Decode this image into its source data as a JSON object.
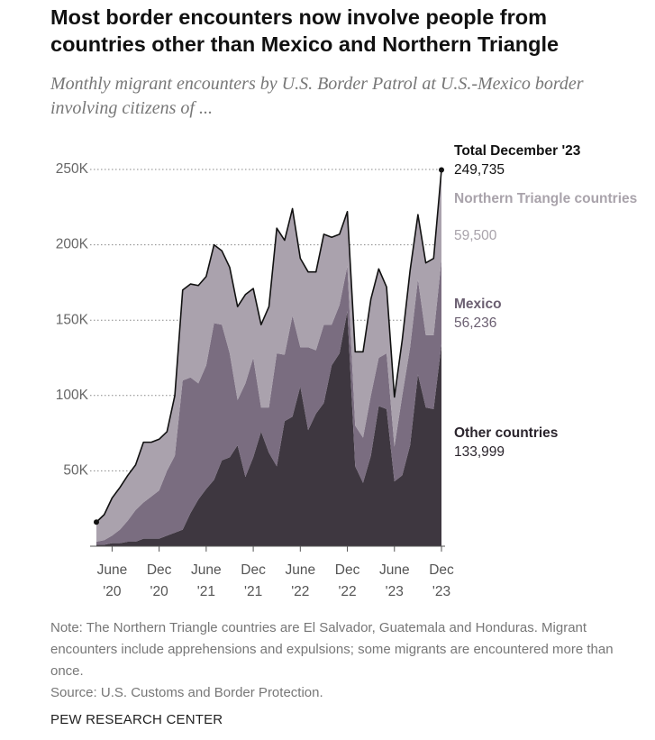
{
  "chart_data": {
    "type": "stacked-area",
    "title": "Most border encounters now involve people from countries other than Mexico and Northern Triangle",
    "subtitle": "Monthly migrant encounters by U.S. Border Patrol at U.S.-Mexico border involving citizens of ...",
    "x": [
      "2020-04",
      "2020-05",
      "2020-06",
      "2020-07",
      "2020-08",
      "2020-09",
      "2020-10",
      "2020-11",
      "2020-12",
      "2021-01",
      "2021-02",
      "2021-03",
      "2021-04",
      "2021-05",
      "2021-06",
      "2021-07",
      "2021-08",
      "2021-09",
      "2021-10",
      "2021-11",
      "2021-12",
      "2022-01",
      "2022-02",
      "2022-03",
      "2022-04",
      "2022-05",
      "2022-06",
      "2022-07",
      "2022-08",
      "2022-09",
      "2022-10",
      "2022-11",
      "2022-12",
      "2023-01",
      "2023-02",
      "2023-03",
      "2023-04",
      "2023-05",
      "2023-06",
      "2023-07",
      "2023-08",
      "2023-09",
      "2023-10",
      "2023-11",
      "2023-12"
    ],
    "xticks": [
      {
        "value": "2020-06",
        "label": "June '20"
      },
      {
        "value": "2020-12",
        "label": "Dec '20"
      },
      {
        "value": "2021-06",
        "label": "June '21"
      },
      {
        "value": "2021-12",
        "label": "Dec '21"
      },
      {
        "value": "2022-06",
        "label": "June '22"
      },
      {
        "value": "2022-12",
        "label": "Dec '22"
      },
      {
        "value": "2023-06",
        "label": "June '23"
      },
      {
        "value": "2023-12",
        "label": "Dec '23"
      }
    ],
    "ylim": [
      0,
      250000
    ],
    "yticks": [
      {
        "value": 50000,
        "label": "50K"
      },
      {
        "value": 100000,
        "label": "100K"
      },
      {
        "value": 150000,
        "label": "150K"
      },
      {
        "value": 200000,
        "label": "200K"
      },
      {
        "value": 250000,
        "label": "250K"
      }
    ],
    "grid": true,
    "series": [
      {
        "name": "Other countries",
        "color": "#3e3740",
        "label_color": "#2b252d",
        "end_value_label": "133,999",
        "values": [
          1000,
          1000,
          2000,
          2000,
          3000,
          3000,
          5000,
          5000,
          5000,
          7000,
          9000,
          11000,
          22000,
          31000,
          38000,
          44000,
          57000,
          59000,
          67000,
          46000,
          59000,
          76000,
          62000,
          53000,
          83000,
          86000,
          106000,
          77000,
          88000,
          95000,
          120000,
          128000,
          156000,
          53000,
          42000,
          60000,
          93000,
          91000,
          43000,
          47000,
          67000,
          114000,
          92000,
          91000,
          133999
        ]
      },
      {
        "name": "Mexico",
        "color": "#7a6d80",
        "label_color": "#6b5f71",
        "end_value_label": "56,236",
        "values": [
          2000,
          3000,
          5000,
          9000,
          14000,
          21000,
          24000,
          28000,
          32000,
          43000,
          51000,
          99000,
          90000,
          77000,
          82000,
          104000,
          90000,
          69000,
          30000,
          62000,
          66000,
          16000,
          30000,
          75000,
          44000,
          67000,
          26000,
          55000,
          42000,
          52000,
          27000,
          32000,
          30000,
          27000,
          30000,
          40000,
          32000,
          37000,
          23000,
          53000,
          65000,
          63000,
          48000,
          49000,
          56236
        ]
      },
      {
        "name": "Northern Triangle countries",
        "color": "#aaa2ad",
        "label_color": "#a9a3ab",
        "end_value_label": "59,500",
        "values": [
          13000,
          17000,
          25000,
          28000,
          30000,
          30000,
          40000,
          36000,
          34000,
          26000,
          40000,
          60000,
          62000,
          65000,
          59000,
          52000,
          49000,
          57000,
          62000,
          59000,
          46000,
          55000,
          67000,
          83000,
          76000,
          71000,
          59000,
          50000,
          52000,
          60000,
          58000,
          47000,
          36000,
          49000,
          57000,
          64000,
          59000,
          44000,
          33000,
          37000,
          51000,
          43000,
          48000,
          51000,
          59500
        ]
      }
    ],
    "total": {
      "label": "Total December '23",
      "value": 249735,
      "value_label": "249,735"
    },
    "note": "Note: The Northern Triangle countries are El Salvador, Guatemala and Honduras. Migrant encounters include apprehensions and expulsions; some migrants are encountered more than once.",
    "source": "Source: U.S. Customs and Border Protection.",
    "credit": "PEW RESEARCH CENTER"
  }
}
